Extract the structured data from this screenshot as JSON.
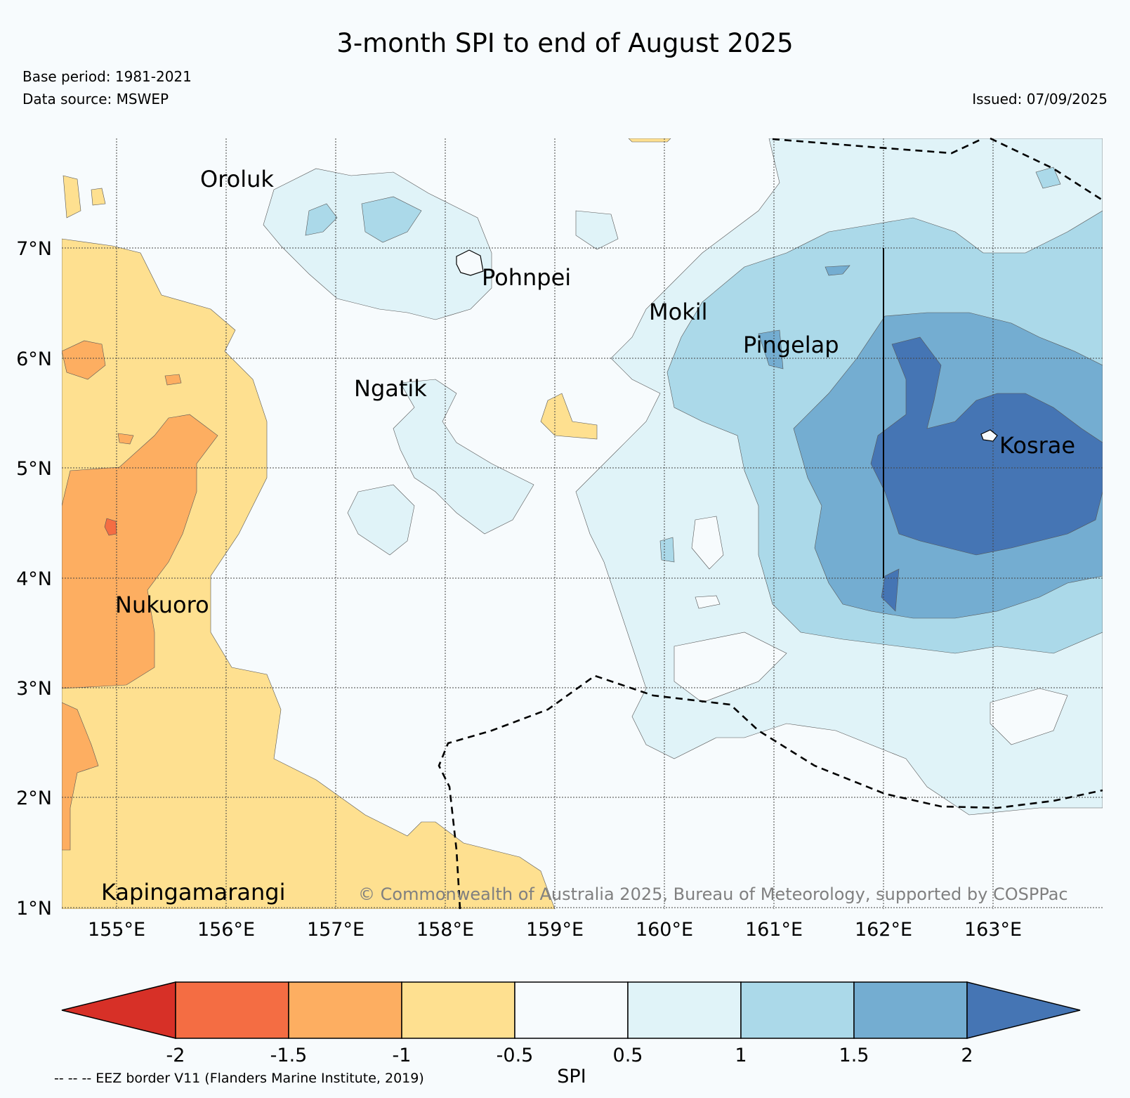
{
  "header": {
    "title": "3-month SPI to end of August 2025",
    "base_period": "Base period: 1981-2021",
    "data_source": "Data source: MSWEP",
    "issued": "Issued: 07/09/2025"
  },
  "map": {
    "lon_labels": [
      "155°E",
      "156°E",
      "157°E",
      "158°E",
      "159°E",
      "160°E",
      "161°E",
      "162°E",
      "163°E"
    ],
    "lat_labels": [
      "7°N",
      "6°N",
      "5°N",
      "4°N",
      "3°N",
      "2°N",
      "1°N"
    ],
    "places": [
      {
        "name": "Oroluk",
        "lon": 155.8,
        "lat": 7.6
      },
      {
        "name": "Pohnpei",
        "lon": 158.2,
        "lat": 6.9
      },
      {
        "name": "Mokil",
        "lon": 159.8,
        "lat": 6.7
      },
      {
        "name": "Pingelap",
        "lon": 160.7,
        "lat": 6.2
      },
      {
        "name": "Ngatik",
        "lon": 157.2,
        "lat": 5.8
      },
      {
        "name": "Kosrae",
        "lon": 163.0,
        "lat": 5.3
      },
      {
        "name": "Nukuoro",
        "lon": 155.0,
        "lat": 3.9
      },
      {
        "name": "Kapingamarangi",
        "lon": 154.8,
        "lat": 1.1
      }
    ],
    "copyright": "© Commonwealth of Australia 2025, Bureau of Meteorology, supported by COSPPac",
    "colors": {
      "spi_lt_-2": "#d73027",
      "spi_-2_-1.5": "#f46d43",
      "spi_-1.5_-1": "#fdae61",
      "spi_-1_-0.5": "#fee090",
      "spi_-0.5_0.5": "#f7fbfd",
      "spi_0.5_1": "#e0f3f8",
      "spi_1_1.5": "#abd9e9",
      "spi_1.5_2": "#74add1",
      "spi_gt_2": "#4575b4"
    }
  },
  "colorbar": {
    "ticks": [
      "-2",
      "-1.5",
      "-1",
      "-0.5",
      "0.5",
      "1",
      "1.5",
      "2"
    ],
    "colors": [
      "#d73027",
      "#f46d43",
      "#fdae61",
      "#fee090",
      "#f7fbfd",
      "#e0f3f8",
      "#abd9e9",
      "#74add1",
      "#4575b4"
    ],
    "label": "SPI"
  },
  "footer": {
    "eez_note": "-- -- -- EEZ border V11 (Flanders Marine Institute, 2019)"
  }
}
